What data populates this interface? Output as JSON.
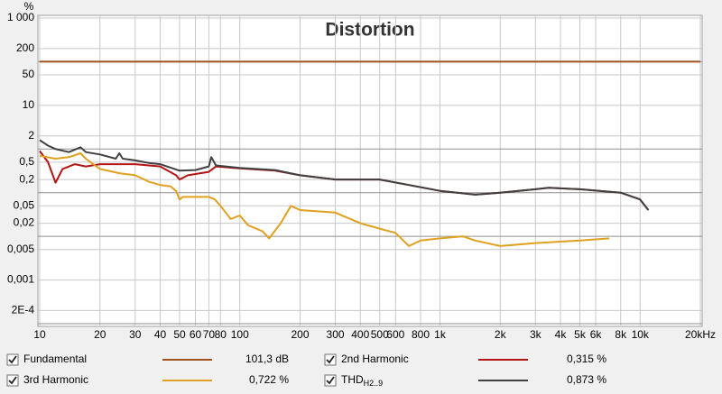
{
  "chart_data": {
    "type": "line",
    "title": "Distortion",
    "y_unit": "%",
    "log_x": true,
    "log_y": true,
    "grid": true,
    "xlim": [
      10,
      20000
    ],
    "ylim": [
      0.0001,
      1000
    ],
    "xticks": [
      10,
      20,
      30,
      40,
      50,
      60,
      70,
      80,
      100,
      200,
      300,
      400,
      500,
      600,
      800,
      {
        "value": 1000,
        "label": "1k"
      },
      {
        "value": 2000,
        "label": "2k"
      },
      {
        "value": 3000,
        "label": "3k"
      },
      {
        "value": 4000,
        "label": "4k"
      },
      {
        "value": 5000,
        "label": "5k"
      },
      {
        "value": 6000,
        "label": "6k"
      },
      {
        "value": 8000,
        "label": "8k"
      },
      {
        "value": 10000,
        "label": "10k"
      },
      {
        "value": 20000,
        "label": "20kHz"
      }
    ],
    "yticks": [
      {
        "value": 1000,
        "label": "1 000"
      },
      200,
      50,
      10,
      2,
      {
        "value": 0.5,
        "label": "0,5"
      },
      {
        "value": 0.2,
        "label": "0,2"
      },
      {
        "value": 0.05,
        "label": "0,05"
      },
      {
        "value": 0.02,
        "label": "0,02"
      },
      {
        "value": 0.005,
        "label": "0,005"
      },
      {
        "value": 0.001,
        "label": "0,001"
      },
      {
        "value": 0.0002,
        "label": "2E-4"
      }
    ],
    "y_gridlines": [
      100,
      1,
      0.1,
      0.01,
      0.0001
    ],
    "series": [
      {
        "name": "Fundamental",
        "color": "#a0521e",
        "reading": "101,3 dB",
        "x": [
          10,
          20000
        ],
        "values": [
          100,
          100
        ]
      },
      {
        "name": "2nd Harmonic",
        "color": "#b41414",
        "reading": "0,315 %",
        "x": [
          10,
          11,
          12,
          13,
          15,
          17,
          20,
          25,
          30,
          40,
          48,
          50,
          55,
          70,
          76,
          100,
          150,
          200,
          300,
          500,
          700,
          1000,
          1500,
          2000,
          3000,
          3500,
          5000,
          8000,
          10000,
          11000
        ],
        "values": [
          0.9,
          0.5,
          0.17,
          0.35,
          0.45,
          0.4,
          0.45,
          0.45,
          0.45,
          0.4,
          0.25,
          0.2,
          0.25,
          0.3,
          0.4,
          0.36,
          0.32,
          0.25,
          0.2,
          0.2,
          0.15,
          0.11,
          0.09,
          0.1,
          0.12,
          0.13,
          0.12,
          0.1,
          0.07,
          0.04
        ]
      },
      {
        "name": "3rd Harmonic",
        "color": "#e0a020",
        "reading": "0,722 %",
        "x": [
          10,
          12,
          14,
          16,
          17,
          20,
          25,
          30,
          35,
          40,
          45,
          48,
          50,
          52,
          60,
          70,
          75,
          80,
          90,
          100,
          110,
          130,
          140,
          160,
          180,
          200,
          300,
          400,
          500,
          600,
          700,
          800,
          1000,
          1300,
          1500,
          2000,
          3000,
          5000,
          7000
        ],
        "values": [
          0.7,
          0.6,
          0.65,
          0.8,
          0.6,
          0.35,
          0.28,
          0.25,
          0.18,
          0.15,
          0.14,
          0.11,
          0.07,
          0.08,
          0.08,
          0.08,
          0.07,
          0.05,
          0.025,
          0.03,
          0.018,
          0.013,
          0.009,
          0.02,
          0.05,
          0.04,
          0.035,
          0.02,
          0.015,
          0.012,
          0.006,
          0.008,
          0.009,
          0.01,
          0.008,
          0.006,
          0.007,
          0.008,
          0.009
        ]
      },
      {
        "name": "THD",
        "name_sub": "H2..9",
        "color": "#404040",
        "reading": "0,873 %",
        "x": [
          10,
          11,
          12,
          14,
          16,
          17,
          20,
          24,
          25,
          26,
          30,
          35,
          40,
          50,
          60,
          70,
          72,
          76,
          100,
          150,
          200,
          300,
          500,
          700,
          1000,
          1500,
          2000,
          3000,
          3500,
          5000,
          8000,
          10000,
          11000
        ],
        "values": [
          1.6,
          1.2,
          1.0,
          0.85,
          1.1,
          0.85,
          0.75,
          0.6,
          0.8,
          0.6,
          0.55,
          0.48,
          0.45,
          0.32,
          0.33,
          0.4,
          0.65,
          0.42,
          0.37,
          0.33,
          0.25,
          0.2,
          0.2,
          0.15,
          0.11,
          0.09,
          0.1,
          0.12,
          0.13,
          0.12,
          0.1,
          0.07,
          0.04
        ]
      }
    ]
  }
}
